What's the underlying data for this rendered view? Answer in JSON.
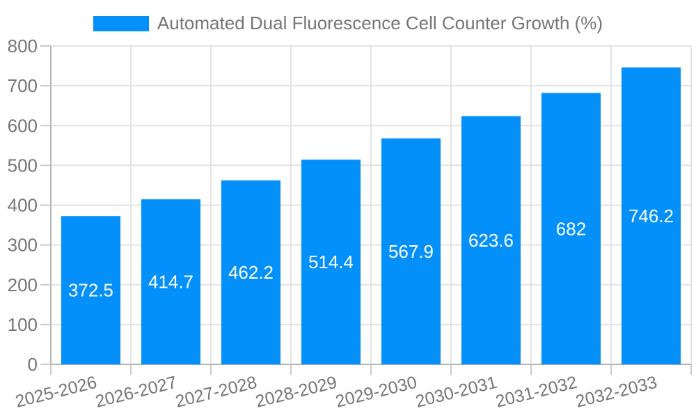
{
  "chart_data": {
    "type": "bar",
    "title": "Automated Dual Fluorescence Cell Counter Growth (%)",
    "categories": [
      "2025-2026",
      "2026-2027",
      "2027-2028",
      "2028-2029",
      "2029-2030",
      "2030-2031",
      "2031-2032",
      "2032-2033"
    ],
    "values": [
      372.5,
      414.7,
      462.2,
      514.4,
      567.9,
      623.6,
      682,
      746.2
    ],
    "bar_labels": [
      "372.5",
      "414.7",
      "462.2",
      "514.4",
      "567.9",
      "623.6",
      "682",
      "746.2"
    ],
    "xlabel": "",
    "ylabel": "",
    "ylim": [
      0,
      800
    ],
    "yticks": [
      0,
      100,
      200,
      300,
      400,
      500,
      600,
      700,
      800
    ],
    "grid": true,
    "legend_position": "top",
    "legend_marker": "rect",
    "colors": {
      "bar": "#0490fb",
      "bar_label_text": "#ffffff",
      "axis_text": "#757575",
      "gridline": "#e3e3e3",
      "axis_line": "#b3b3b3",
      "tick_line": "#c9c9c9",
      "background": "#ffffff"
    }
  }
}
